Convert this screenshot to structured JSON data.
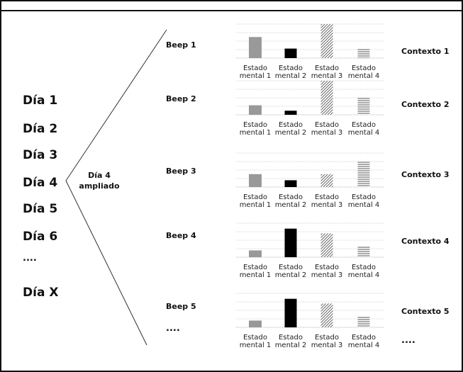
{
  "days": [
    "Día 1",
    "Día 2",
    "Día 3",
    "Día 4",
    "Día 5",
    "Día 6",
    "....",
    "Día X"
  ],
  "zoom_label": [
    "Día 4",
    "ampliado"
  ],
  "beep_ellipsis": "....",
  "context_ellipsis": "....",
  "series_patterns": {
    "mental_1": "gray",
    "mental_2": "black",
    "mental_3": "diagonal-hatch",
    "mental_4": "horizontal-stripes"
  },
  "mental_state_labels": [
    [
      "Estado",
      "mental 1"
    ],
    [
      "Estado",
      "mental 2"
    ],
    [
      "Estado",
      "mental 3"
    ],
    [
      "Estado",
      "mental 4"
    ]
  ],
  "beeps": [
    {
      "label": "Beep 1",
      "context": "Contexto 1",
      "levels": [
        0.62,
        0.28,
        1.0,
        0.28
      ]
    },
    {
      "label": "Beep 2",
      "context": "Contexto 2",
      "levels": [
        0.28,
        0.12,
        1.0,
        0.5
      ]
    },
    {
      "label": "Beep 3",
      "context": "Contexto 3",
      "levels": [
        0.38,
        0.2,
        0.38,
        0.76
      ]
    },
    {
      "label": "Beep 4",
      "context": "Contexto 4",
      "levels": [
        0.2,
        0.84,
        0.7,
        0.32
      ]
    },
    {
      "label": "Beep 5",
      "context": "Contexto 5",
      "levels": [
        0.2,
        0.84,
        0.7,
        0.32
      ]
    }
  ]
}
